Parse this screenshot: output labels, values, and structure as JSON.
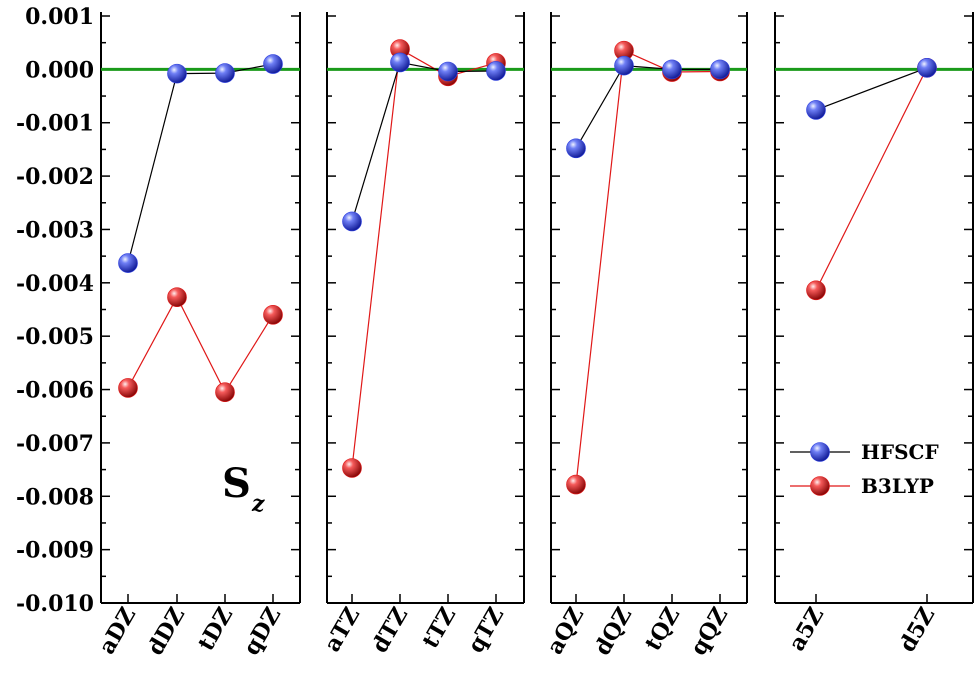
{
  "chart_data": {
    "type": "scatter",
    "title": "",
    "xlabel": "",
    "ylabel": "",
    "ylim": [
      -0.01,
      0.001
    ],
    "y_ticks": [
      "0.001",
      "0.000",
      "-0.001",
      "-0.002",
      "-0.003",
      "-0.004",
      "-0.005",
      "-0.006",
      "-0.007",
      "-0.008",
      "-0.009",
      "-0.010"
    ],
    "reference_line": {
      "y": 0.0,
      "color": "#1a9a1a"
    },
    "annotation": {
      "main": "S",
      "sub": "z"
    },
    "legend": {
      "placement": "bottom-right of last panel",
      "entries": [
        "HFSCF",
        "B3LYP"
      ]
    },
    "series_colors": {
      "HFSCF": "#2d3fe0",
      "B3LYP": "#e01818"
    },
    "panels": [
      {
        "categories": [
          "aDZ",
          "dDZ",
          "tDZ",
          "qDZ"
        ],
        "series": [
          {
            "name": "HFSCF",
            "values": [
              -0.00363,
              -8e-05,
              -7e-05,
              0.0001
            ]
          },
          {
            "name": "B3LYP",
            "values": [
              -0.00597,
              -0.00427,
              -0.00605,
              -0.0046
            ]
          }
        ]
      },
      {
        "categories": [
          "aTZ",
          "dTZ",
          "tTZ",
          "qTZ"
        ],
        "series": [
          {
            "name": "HFSCF",
            "values": [
              -0.00285,
              0.00013,
              -4e-05,
              -3e-05
            ]
          },
          {
            "name": "B3LYP",
            "values": [
              -0.00747,
              0.00038,
              -0.00013,
              0.00012
            ]
          }
        ]
      },
      {
        "categories": [
          "aQZ",
          "dQZ",
          "tQZ",
          "qQZ"
        ],
        "series": [
          {
            "name": "HFSCF",
            "values": [
              -0.00148,
              7e-05,
              0.0,
              0.0
            ]
          },
          {
            "name": "B3LYP",
            "values": [
              -0.00778,
              0.00035,
              -5e-05,
              -4e-05
            ]
          }
        ]
      },
      {
        "categories": [
          "a5Z",
          "d5Z"
        ],
        "series": [
          {
            "name": "HFSCF",
            "values": [
              -0.00076,
              3e-05
            ]
          },
          {
            "name": "B3LYP",
            "values": [
              -0.00414,
              3e-05
            ]
          }
        ]
      }
    ]
  }
}
